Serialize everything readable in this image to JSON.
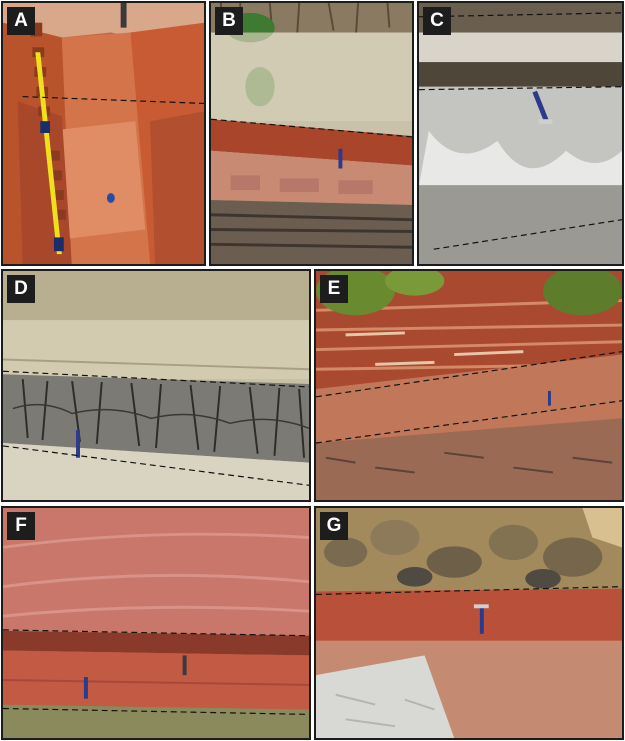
{
  "figure": {
    "panels": [
      {
        "id": "A",
        "label": "A",
        "scene": "trench-with-measuring-tape"
      },
      {
        "id": "B",
        "label": "B",
        "scene": "vegetated-outcrop-with-red-layer"
      },
      {
        "id": "C",
        "label": "C",
        "scene": "grey-layered-outcrop-with-hammer"
      },
      {
        "id": "D",
        "label": "D",
        "scene": "cracked-grey-layer"
      },
      {
        "id": "E",
        "label": "E",
        "scene": "red-sandstone-outcrop"
      },
      {
        "id": "F",
        "label": "F",
        "scene": "red-sandstone-overhang"
      },
      {
        "id": "G",
        "label": "G",
        "scene": "conglomerate-over-red-soil"
      }
    ]
  },
  "colors": {
    "frame": "#1c1c1c",
    "label_bg": "#1d1d1d",
    "label_text": "#ffffff",
    "dashed_line": "#111111",
    "tape": "#f0e01c",
    "hammer_head": "#2b3a8a"
  }
}
